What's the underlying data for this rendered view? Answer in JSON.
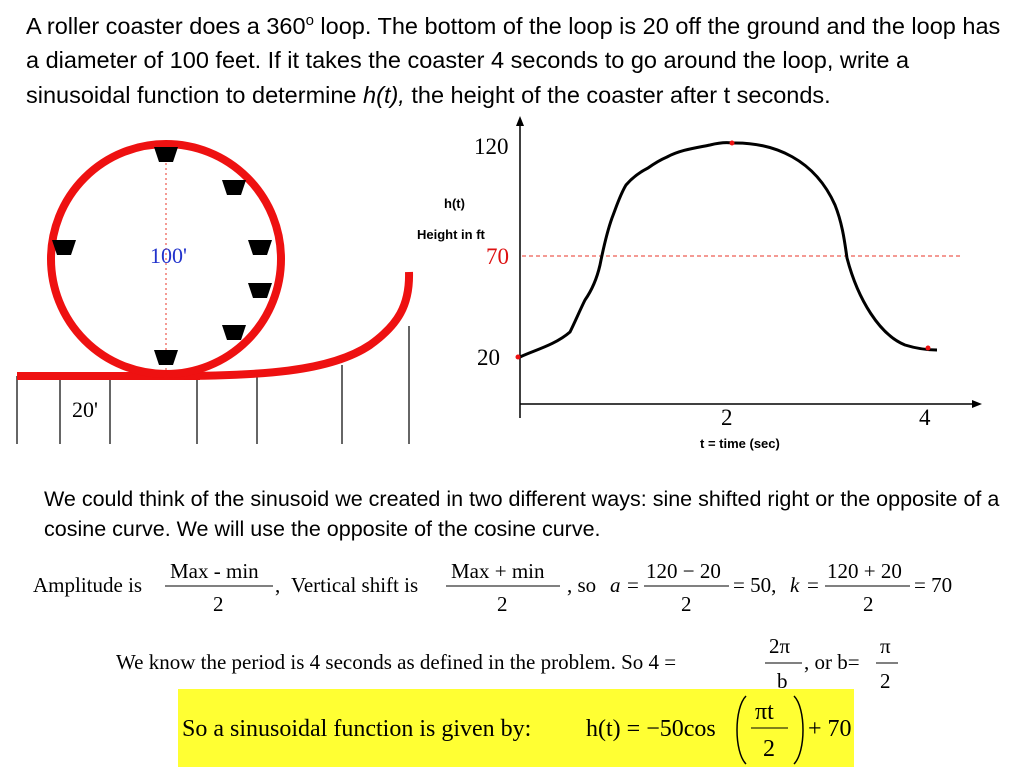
{
  "problem": {
    "part1": "A roller coaster does a 360",
    "degree": "o",
    "part2": " loop. The bottom of the loop is 20 off the ground and the loop has a diameter of 100 feet. If it takes the coaster 4 seconds to go around the loop, write a sinusoidal function to determine ",
    "func": "h(t),",
    "part3": " the height of the coaster after t seconds."
  },
  "diagram": {
    "diameter_label": "100'",
    "ground_label": "20'"
  },
  "graph": {
    "y_max_label": "120",
    "y_mid_label": "70",
    "y_min_label": "20",
    "y_axis_title_1": "h(t)",
    "y_axis_title_2": "Height in ft",
    "x_tick_1": "2",
    "x_tick_2": "4",
    "x_axis_title": "t = time (sec)",
    "colors": {
      "curve": "#000000",
      "midline": "#e8352a",
      "track": "#ee1111",
      "mid_label": "#dd1111"
    }
  },
  "explanation": {
    "think": "We could think of the sinusoid we created in two different ways: sine shifted right or the opposite of a cosine curve. We will use the opposite of the cosine curve.",
    "amp_label": "Amplitude is",
    "amp_num": "Max - min",
    "amp_den": "2",
    "comma1": ",",
    "vshift_label": "Vertical shift is",
    "vshift_num": "Max + min",
    "vshift_den": "2",
    "so": ", so",
    "a_var": "a",
    "eq": "=",
    "a_num": "120 − 20",
    "a_den": "2",
    "a_result": "= 50,",
    "k_var": "k",
    "k_num": "120 + 20",
    "k_den": "2",
    "k_result": "= 70",
    "period_text": "We know the period is 4 seconds as defined in the problem. So 4 =",
    "period_num": "2π",
    "period_den": "b",
    "or_b": ",  or b=",
    "b_num": "π",
    "b_den": "2"
  },
  "answer": {
    "lead": "So a sinusoidal function is given by:",
    "lhs": "h(t) = −50cos",
    "arg_num": "πt",
    "arg_den": "2",
    "rhs": "+ 70"
  }
}
